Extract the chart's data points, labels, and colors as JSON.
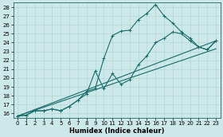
{
  "xlabel": "Humidex (Indice chaleur)",
  "bg_color": "#cce8e8",
  "line_color": "#1a6b6b",
  "grid_color": "#aad4d4",
  "xlim": [
    -0.5,
    23.5
  ],
  "ylim": [
    15.5,
    28.5
  ],
  "xticks": [
    0,
    1,
    2,
    3,
    4,
    5,
    6,
    7,
    8,
    9,
    10,
    11,
    12,
    13,
    14,
    15,
    16,
    17,
    18,
    19,
    20,
    21,
    22,
    23
  ],
  "yticks": [
    16,
    17,
    18,
    19,
    20,
    21,
    22,
    23,
    24,
    25,
    26,
    27,
    28
  ],
  "series": [
    {
      "x": [
        0,
        1,
        2,
        3,
        4,
        5,
        6,
        7,
        8,
        9,
        10,
        11,
        12,
        13,
        14,
        15,
        16,
        17,
        18,
        19,
        20,
        21,
        22,
        23
      ],
      "y": [
        15.7,
        15.8,
        16.3,
        16.3,
        16.5,
        16.3,
        16.8,
        17.5,
        18.5,
        18.8,
        22.2,
        24.8,
        25.3,
        25.4,
        26.6,
        27.3,
        28.3,
        27.0,
        26.2,
        25.2,
        24.5,
        23.5,
        23.2,
        24.2
      ],
      "markers": true
    },
    {
      "x": [
        0,
        1,
        2,
        3,
        4,
        5,
        6,
        7,
        8,
        9,
        10,
        11,
        12,
        13,
        14,
        15,
        16,
        17,
        18,
        19,
        20,
        21,
        22,
        23
      ],
      "y": [
        15.7,
        15.8,
        16.3,
        16.3,
        16.5,
        16.3,
        16.8,
        17.5,
        18.2,
        20.8,
        18.8,
        20.5,
        19.3,
        19.8,
        21.5,
        22.5,
        24.0,
        24.5,
        25.2,
        25.0,
        24.2,
        23.5,
        23.2,
        24.2
      ],
      "markers": true
    },
    {
      "x": [
        0,
        23
      ],
      "y": [
        15.7,
        24.2
      ],
      "markers": false
    },
    {
      "x": [
        0,
        23
      ],
      "y": [
        15.7,
        23.3
      ],
      "markers": false
    }
  ],
  "tick_fontsize": 5,
  "xlabel_fontsize": 6,
  "linewidth": 0.8,
  "markersize": 3,
  "spine_color": "#1a6b6b"
}
